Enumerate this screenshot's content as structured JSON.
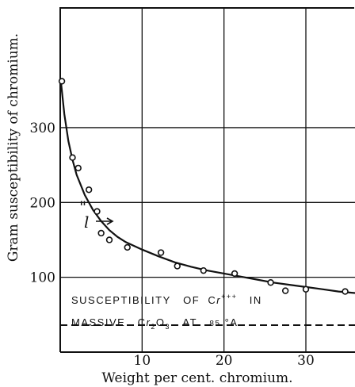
{
  "chart_data": {
    "type": "scatter",
    "title": "",
    "xlabel": "Weight per cent. chromium.",
    "ylabel": "Gram susceptibility of chromium.",
    "xlim": [
      0,
      36
    ],
    "ylim": [
      0,
      460
    ],
    "grid": true,
    "x_ticks": [
      10,
      20,
      30
    ],
    "y_ticks": [
      100,
      200,
      300
    ],
    "points": [
      {
        "x": 0.2,
        "y": 362
      },
      {
        "x": 1.5,
        "y": 260
      },
      {
        "x": 2.2,
        "y": 246
      },
      {
        "x": 3.5,
        "y": 217
      },
      {
        "x": 4.5,
        "y": 188
      },
      {
        "x": 5.0,
        "y": 159
      },
      {
        "x": 6.0,
        "y": 150
      },
      {
        "x": 8.2,
        "y": 140
      },
      {
        "x": 12.3,
        "y": 133
      },
      {
        "x": 14.3,
        "y": 115
      },
      {
        "x": 17.5,
        "y": 109
      },
      {
        "x": 21.3,
        "y": 105
      },
      {
        "x": 25.7,
        "y": 93
      },
      {
        "x": 27.5,
        "y": 82
      },
      {
        "x": 30.0,
        "y": 84
      },
      {
        "x": 34.8,
        "y": 81
      }
    ],
    "curve": {
      "label": "l",
      "x": [
        0.1,
        0.5,
        1,
        1.5,
        2,
        3,
        4,
        5,
        6,
        7,
        8,
        10,
        12,
        14,
        16,
        18,
        20,
        22,
        24,
        26,
        28,
        30,
        32,
        34,
        36
      ],
      "y": [
        360,
        318,
        282,
        257,
        237,
        210,
        190,
        175,
        163,
        154,
        147,
        137,
        128,
        120,
        114,
        109,
        105,
        101,
        97,
        93,
        90,
        87,
        84,
        81,
        79
      ]
    },
    "reference_line": {
      "y": 36,
      "style": "dashed",
      "annotation_line1": "SUSCEPTIBILITY   OF  Cr+++   IN",
      "annotation_line2": "MASSIVE   Cr2O3   AT   85 °A"
    }
  }
}
